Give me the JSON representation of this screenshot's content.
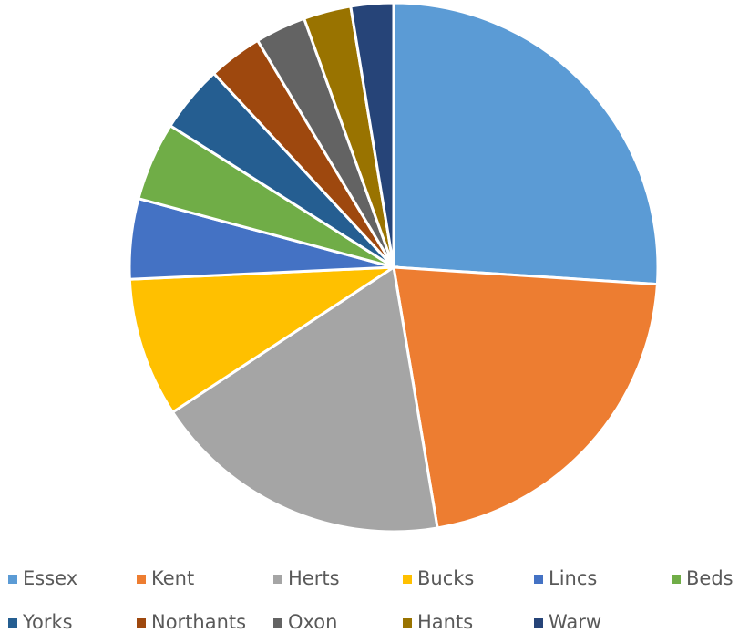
{
  "chart_data": {
    "type": "pie",
    "categories": [
      "Essex",
      "Kent",
      "Herts",
      "Bucks",
      "Lincs",
      "Beds",
      "Yorks",
      "Northants",
      "Oxon",
      "Hants",
      "Warw"
    ],
    "values": [
      26,
      21.3,
      18.4,
      8.5,
      4.9,
      4.8,
      4.1,
      3.3,
      3.1,
      2.9,
      2.6
    ],
    "colors": [
      "#5b9bd5",
      "#ed7d31",
      "#a5a5a5",
      "#ffc000",
      "#4472c4",
      "#70ad47",
      "#255e91",
      "#9e480e",
      "#636363",
      "#997300",
      "#264478"
    ],
    "legend": "bottom"
  }
}
